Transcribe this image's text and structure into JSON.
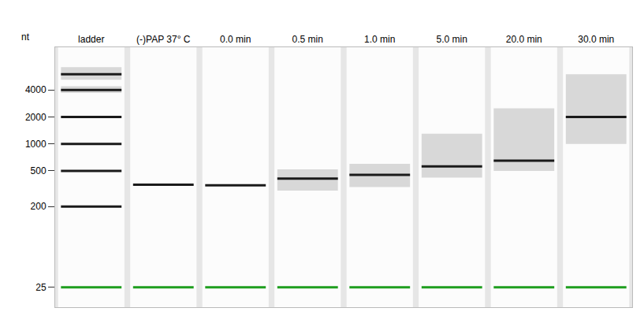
{
  "chart_data": {
    "type": "gel",
    "y_label": "nt",
    "log": "y",
    "grid": false,
    "color": "#1a1a1a",
    "ylim": [
      15,
      12000
    ],
    "yticks": [
      25,
      200,
      500,
      1000,
      2000,
      4000
    ],
    "categories": [
      "ladder",
      "(-)PAP 37° C",
      "0.0 min",
      "0.5 min",
      "1.0 min",
      "5.0 min",
      "20.0 min",
      "30.0 min"
    ],
    "bands": [
      [
        {
          "nt": 25,
          "color": "#1e9e1e"
        },
        {
          "nt": 200
        },
        {
          "nt": 500
        },
        {
          "nt": 1000
        },
        {
          "nt": 2000
        },
        {
          "nt": 4000,
          "from": 3700,
          "to": 4400
        },
        {
          "nt": 6000,
          "from": 5200,
          "to": 7200
        }
      ],
      [
        {
          "nt": 25,
          "color": "#1e9e1e"
        },
        {
          "nt": 350
        }
      ],
      [
        {
          "nt": 25,
          "color": "#1e9e1e"
        },
        {
          "nt": 345
        }
      ],
      [
        {
          "nt": 25,
          "color": "#1e9e1e"
        },
        {
          "nt": 410,
          "from": 300,
          "to": 520
        }
      ],
      [
        {
          "nt": 25,
          "color": "#1e9e1e"
        },
        {
          "nt": 450,
          "from": 330,
          "to": 600
        }
      ],
      [
        {
          "nt": 25,
          "color": "#1e9e1e"
        },
        {
          "nt": 560,
          "from": 420,
          "to": 1300
        }
      ],
      [
        {
          "nt": 25,
          "color": "#1e9e1e"
        },
        {
          "nt": 650,
          "from": 500,
          "to": 2500
        }
      ],
      [
        {
          "nt": 25,
          "color": "#1e9e1e"
        },
        {
          "nt": 2000,
          "from": 1000,
          "to": 6000
        }
      ]
    ]
  }
}
